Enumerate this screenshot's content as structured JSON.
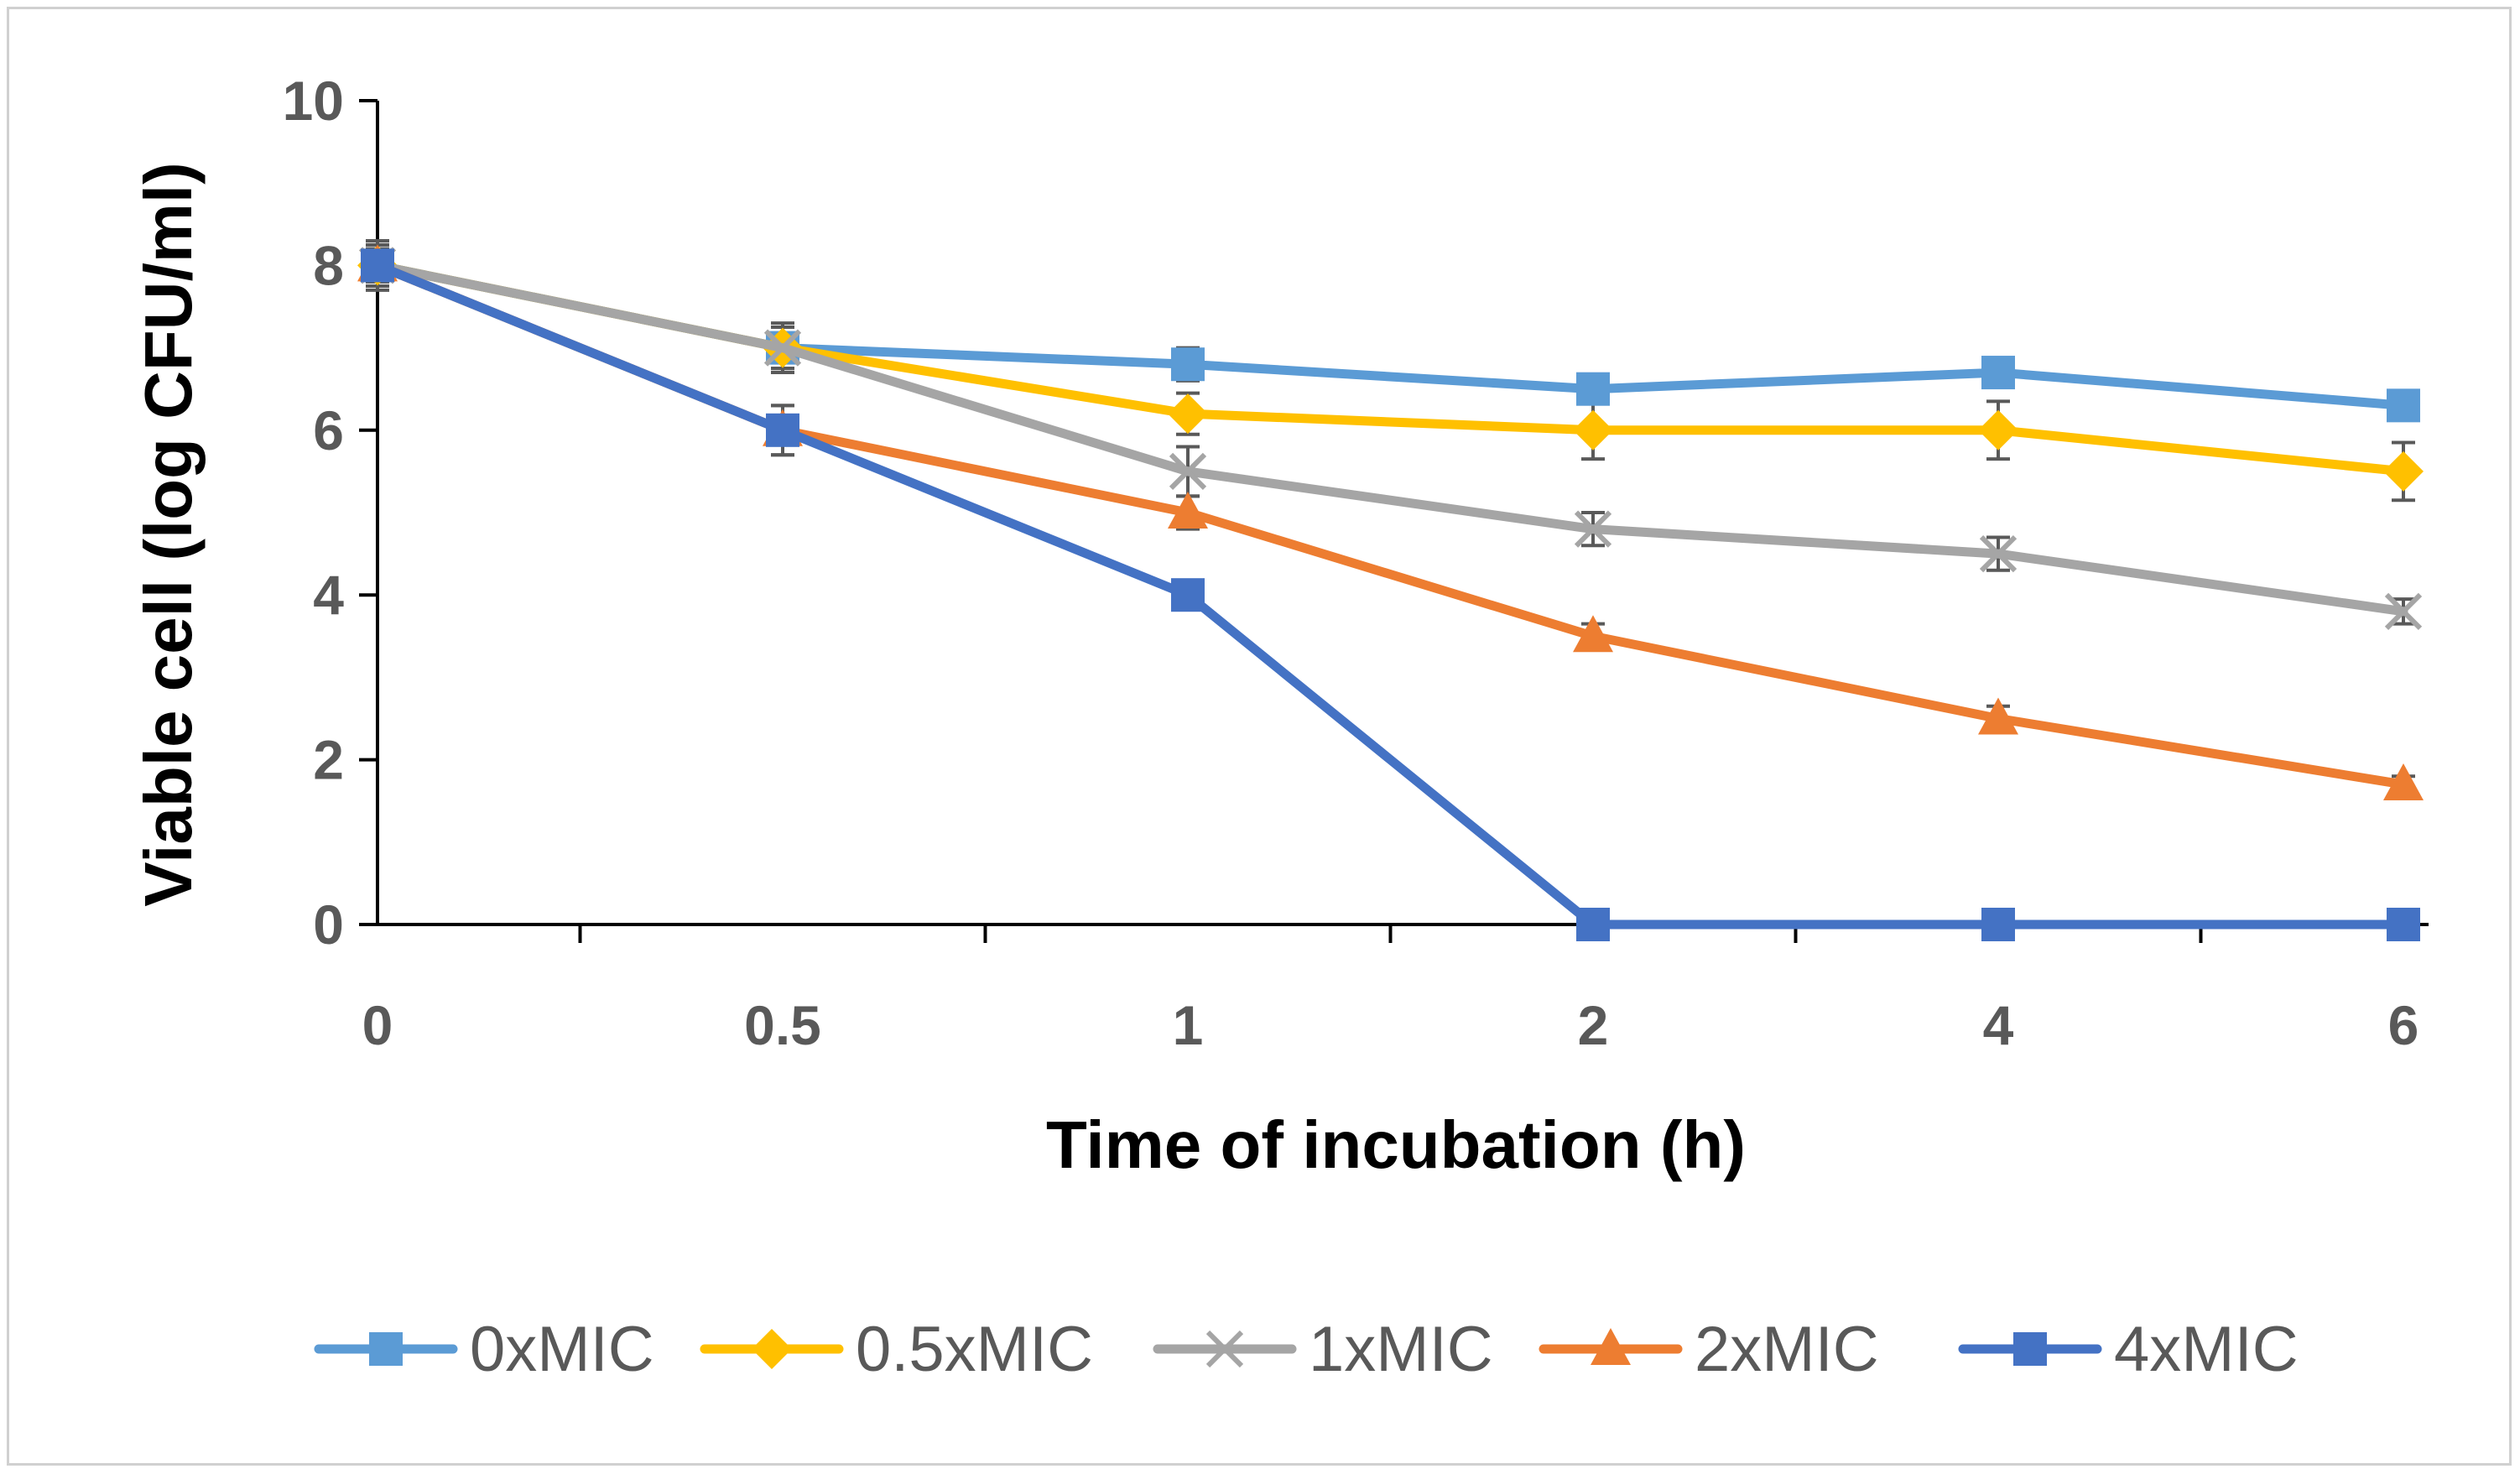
{
  "chart_data": {
    "type": "line",
    "title": "",
    "xlabel": "Time of incubation (h)",
    "ylabel": "Viable cell (log CFU/ml)",
    "categories": [
      "0",
      "0.5",
      "1",
      "2",
      "4",
      "6"
    ],
    "ylim": [
      0,
      10
    ],
    "yticks": [
      "0",
      "2",
      "4",
      "6",
      "8",
      "10"
    ],
    "grid": false,
    "legend_position": "bottom",
    "series": [
      {
        "name": "0xMIC",
        "color": "#5B9BD5",
        "marker": "square",
        "values": [
          8.0,
          7.0,
          6.8,
          6.5,
          6.7,
          6.3
        ],
        "errors": [
          0.25,
          0.25,
          0.2,
          0.15,
          0.15,
          0.15
        ]
      },
      {
        "name": "0.5xMIC",
        "color": "#FFC000",
        "marker": "diamond",
        "values": [
          8.0,
          7.0,
          6.2,
          6.0,
          6.0,
          5.5
        ],
        "errors": [
          0.25,
          0.3,
          0.25,
          0.35,
          0.35,
          0.35
        ]
      },
      {
        "name": "1xMIC",
        "color": "#A5A5A5",
        "marker": "x",
        "values": [
          8.0,
          7.0,
          5.5,
          4.8,
          4.5,
          3.8
        ],
        "errors": [
          0.2,
          0.25,
          0.3,
          0.2,
          0.2,
          0.15
        ]
      },
      {
        "name": "2xMIC",
        "color": "#ED7D31",
        "marker": "triangle",
        "values": [
          8.0,
          6.0,
          5.0,
          3.5,
          2.5,
          1.7
        ],
        "errors": [
          0.2,
          0.3,
          0.2,
          0.15,
          0.15,
          0.1
        ]
      },
      {
        "name": "4xMIC",
        "color": "#4472C4",
        "marker": "square",
        "values": [
          8.0,
          6.0,
          4.0,
          0.0,
          0.0,
          0.0
        ],
        "errors": [
          0.3,
          0.3,
          0.1,
          0.0,
          0.0,
          0.0
        ]
      }
    ]
  }
}
